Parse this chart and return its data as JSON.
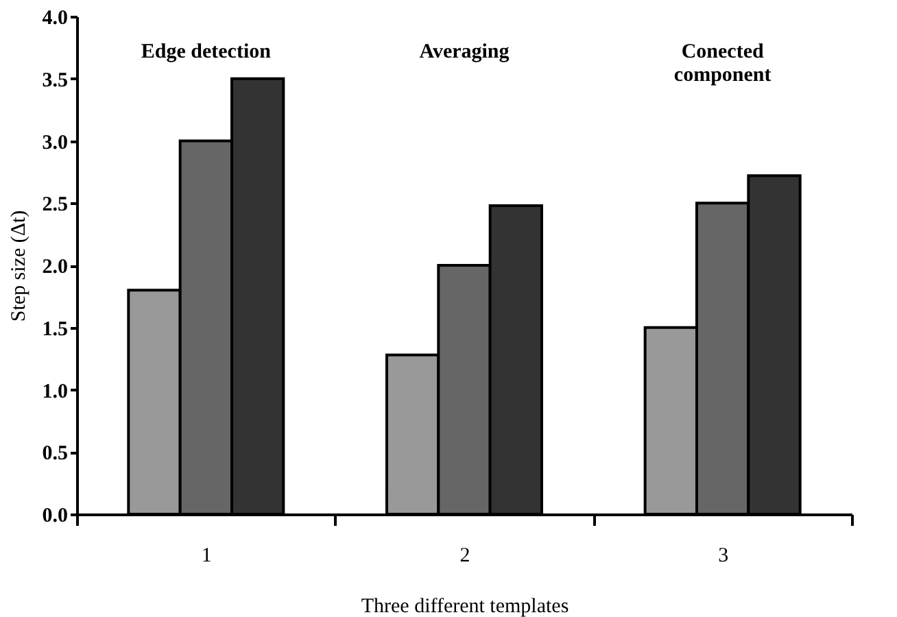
{
  "chart_data": {
    "type": "bar",
    "xlabel": "Three different templates",
    "ylabel": "Step size (Δt)",
    "categories": [
      "1",
      "2",
      "3"
    ],
    "series": [
      {
        "color": "#999999",
        "values": [
          1.8,
          1.28,
          1.5
        ]
      },
      {
        "color": "#666666",
        "values": [
          3.0,
          2.0,
          2.5
        ]
      },
      {
        "color": "#333333",
        "values": [
          3.5,
          2.48,
          2.72
        ]
      }
    ],
    "ylim": [
      0,
      4
    ],
    "yticks": [
      {
        "value": 0,
        "label": "0.0"
      },
      {
        "value": 0.5,
        "label": "0.5"
      },
      {
        "value": 1,
        "label": "1.0"
      },
      {
        "value": 1.5,
        "label": "1.5"
      },
      {
        "value": 2,
        "label": "2.0"
      },
      {
        "value": 2.5,
        "label": "2.5"
      },
      {
        "value": 3,
        "label": "3.0"
      },
      {
        "value": 3.5,
        "label": "3.5"
      },
      {
        "value": 4,
        "label": "4.0"
      }
    ],
    "grid": false,
    "annotations": [
      "Edge detection",
      "Averaging",
      "Conected\ncomponent"
    ]
  }
}
